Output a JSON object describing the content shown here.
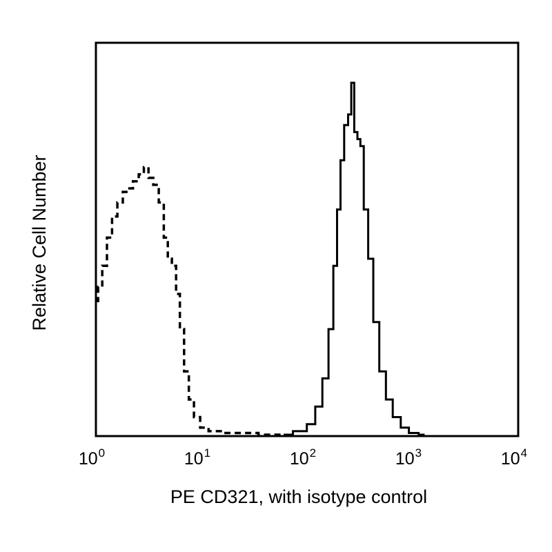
{
  "chart_data": {
    "type": "line",
    "title": "",
    "xlabel": "PE CD321, with isotype control",
    "ylabel": "Relative Cell Number",
    "x_scale": "log",
    "xlim": [
      1,
      10000
    ],
    "ylim": [
      0,
      100
    ],
    "x_ticks": [
      {
        "base": "10",
        "exp": "0"
      },
      {
        "base": "10",
        "exp": "1"
      },
      {
        "base": "10",
        "exp": "2"
      },
      {
        "base": "10",
        "exp": "3"
      },
      {
        "base": "10",
        "exp": "4"
      }
    ],
    "y_ticks": [],
    "grid": false,
    "legend": "none",
    "series": [
      {
        "style": "dashed",
        "color": "#000000",
        "points": [
          [
            1.0,
            38
          ],
          [
            1.1,
            42
          ],
          [
            1.2,
            48
          ],
          [
            1.35,
            56
          ],
          [
            1.5,
            62
          ],
          [
            1.7,
            66
          ],
          [
            1.9,
            69
          ],
          [
            2.1,
            70
          ],
          [
            2.4,
            72
          ],
          [
            2.7,
            74
          ],
          [
            3.0,
            76
          ],
          [
            3.3,
            73
          ],
          [
            3.7,
            71
          ],
          [
            4.2,
            66
          ],
          [
            4.6,
            56
          ],
          [
            5.0,
            50
          ],
          [
            5.5,
            48
          ],
          [
            6.0,
            40
          ],
          [
            6.5,
            30
          ],
          [
            7.2,
            18
          ],
          [
            8.0,
            10
          ],
          [
            9.0,
            5
          ],
          [
            10.5,
            2
          ],
          [
            13,
            1
          ],
          [
            20,
            0.5
          ],
          [
            60,
            0
          ]
        ]
      },
      {
        "style": "solid",
        "color": "#000000",
        "points": [
          [
            60,
            0
          ],
          [
            90,
            1
          ],
          [
            110,
            3
          ],
          [
            130,
            8
          ],
          [
            150,
            16
          ],
          [
            170,
            30
          ],
          [
            185,
            48
          ],
          [
            200,
            64
          ],
          [
            215,
            78
          ],
          [
            235,
            88
          ],
          [
            255,
            91
          ],
          [
            270,
            100
          ],
          [
            290,
            86
          ],
          [
            310,
            84
          ],
          [
            330,
            82
          ],
          [
            360,
            64
          ],
          [
            400,
            50
          ],
          [
            450,
            32
          ],
          [
            520,
            18
          ],
          [
            600,
            10
          ],
          [
            700,
            5
          ],
          [
            850,
            2
          ],
          [
            1000,
            0.5
          ],
          [
            1300,
            0
          ]
        ]
      }
    ]
  }
}
